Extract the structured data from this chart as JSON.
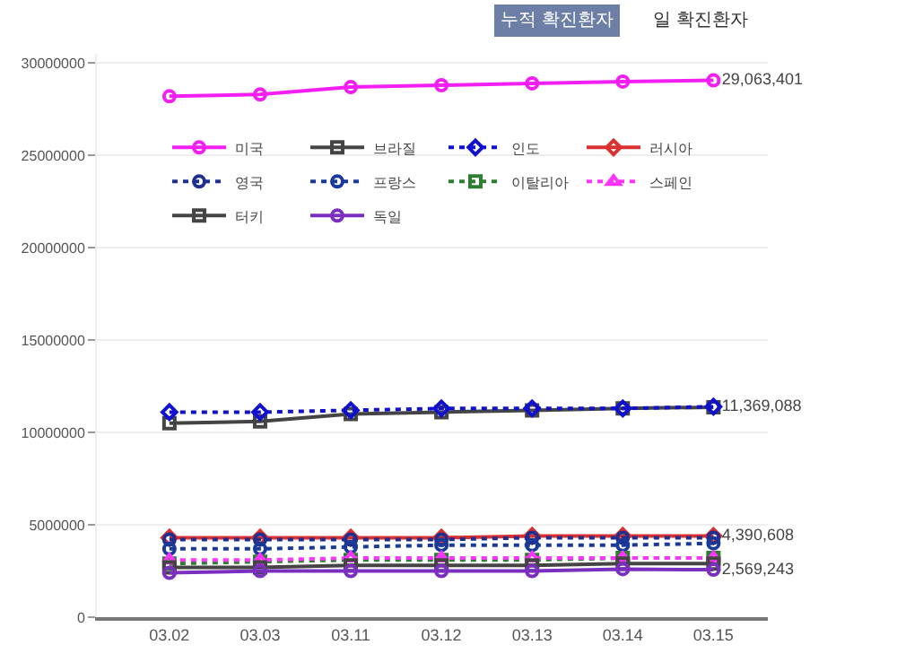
{
  "chart_data": {
    "type": "line",
    "categories": [
      "03.02",
      "03.03",
      "03.11",
      "03.12",
      "03.13",
      "03.14",
      "03.15"
    ],
    "series": [
      {
        "name": "미국",
        "color": "#f21ef2",
        "marker": "circle",
        "line_style": "solid",
        "values": [
          28200000,
          28300000,
          28700000,
          28800000,
          28900000,
          29000000,
          29063401
        ],
        "value_labels": [
          null,
          null,
          null,
          null,
          null,
          null,
          "29,063,401"
        ]
      },
      {
        "name": "브라질",
        "color": "#444444",
        "marker": "square",
        "line_style": "solid",
        "values": [
          10500000,
          10600000,
          11000000,
          11100000,
          11200000,
          11300000,
          11369088
        ],
        "value_labels": [
          null,
          null,
          null,
          null,
          null,
          null,
          "11,369,088"
        ]
      },
      {
        "name": "인도",
        "color": "#1010d0",
        "marker": "diamond",
        "line_style": "dotted",
        "values": [
          11100000,
          11100000,
          11200000,
          11300000,
          11300000,
          11300000,
          11400000
        ]
      },
      {
        "name": "러시아",
        "color": "#d93030",
        "marker": "diamond",
        "line_style": "solid",
        "values": [
          4300000,
          4300000,
          4300000,
          4300000,
          4400000,
          4400000,
          4390608
        ],
        "value_labels": [
          null,
          null,
          null,
          null,
          null,
          null,
          "4,390,608"
        ]
      },
      {
        "name": "영국",
        "color": "#1f2f8f",
        "marker": "circle",
        "line_style": "dotted",
        "values": [
          4200000,
          4200000,
          4200000,
          4200000,
          4300000,
          4300000,
          4300000
        ]
      },
      {
        "name": "프랑스",
        "color": "#1a3a9a",
        "marker": "circle",
        "line_style": "dotted",
        "values": [
          3700000,
          3700000,
          3800000,
          3900000,
          3900000,
          3900000,
          4000000
        ]
      },
      {
        "name": "이탈리아",
        "color": "#2e7d32",
        "marker": "square",
        "line_style": "dotted",
        "values": [
          2900000,
          3000000,
          3100000,
          3100000,
          3100000,
          3200000,
          3200000
        ]
      },
      {
        "name": "스페인",
        "color": "#ff33ff",
        "marker": "triangle",
        "line_style": "dotted",
        "values": [
          3100000,
          3100000,
          3200000,
          3200000,
          3200000,
          3200000,
          3200000
        ]
      },
      {
        "name": "터키",
        "color": "#444444",
        "marker": "square",
        "line_style": "solid",
        "values": [
          2700000,
          2700000,
          2800000,
          2800000,
          2800000,
          2900000,
          2900000
        ]
      },
      {
        "name": "독일",
        "color": "#7b2fbf",
        "marker": "circle",
        "line_style": "solid",
        "values": [
          2400000,
          2500000,
          2500000,
          2500000,
          2500000,
          2600000,
          2569243
        ],
        "value_labels": [
          null,
          null,
          null,
          null,
          null,
          null,
          "2,569,243"
        ]
      }
    ],
    "ylim": [
      0,
      30500000
    ],
    "yticks": [
      0,
      5000000,
      10000000,
      15000000,
      20000000,
      25000000,
      30000000
    ],
    "grid": "y",
    "legend": "top",
    "annotations": [
      "누적 확진환자",
      "일 확진환자"
    ]
  }
}
